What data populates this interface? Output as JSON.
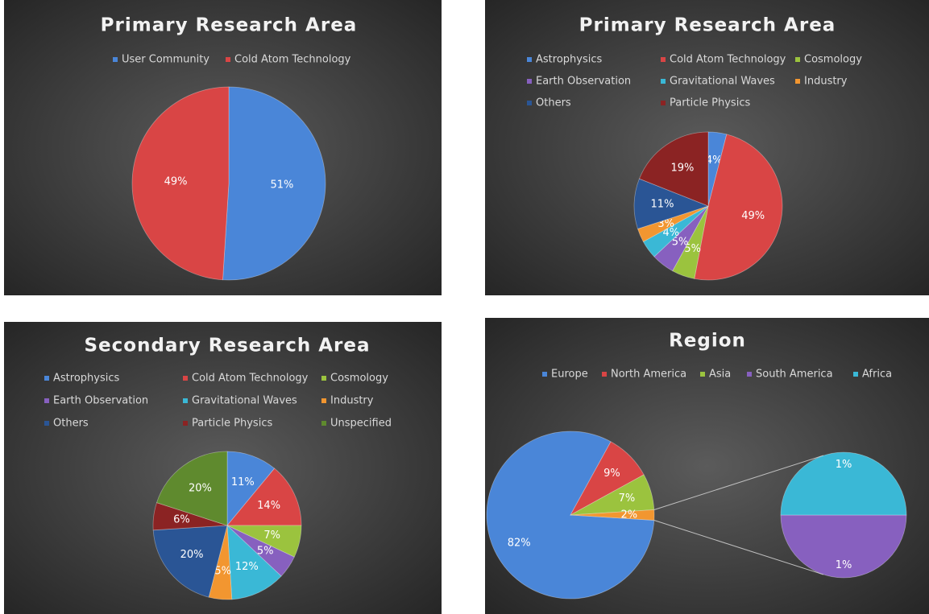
{
  "chart_data": [
    {
      "type": "pie",
      "title": "Primary Research Area",
      "categories": [
        "User Community",
        "Cold Atom Technology"
      ],
      "values": [
        51,
        49
      ],
      "value_labels": [
        "51%",
        "49%"
      ],
      "colors": [
        "#4a86d8",
        "#d94545"
      ]
    },
    {
      "type": "pie",
      "title": "Primary Research Area",
      "categories": [
        "Astrophysics",
        "Cold Atom Technology",
        "Cosmology",
        "Earth Observation",
        "Gravitational Waves",
        "Industry",
        "Others",
        "Particle Physics"
      ],
      "values": [
        4,
        49,
        5,
        5,
        4,
        3,
        11,
        19
      ],
      "value_labels": [
        "4%",
        "49%",
        "5%",
        "5%",
        "4%",
        "3%",
        "11%",
        "19%"
      ],
      "colors": [
        "#4a86d8",
        "#d94545",
        "#9bc33e",
        "#8760bf",
        "#3ab8d6",
        "#f29630",
        "#2a5595",
        "#8b2323"
      ]
    },
    {
      "type": "pie",
      "title": "Secondary Research Area",
      "categories": [
        "Astrophysics",
        "Cold Atom Technology",
        "Cosmology",
        "Earth Observation",
        "Gravitational Waves",
        "Industry",
        "Others",
        "Particle Physics",
        "Unspecified"
      ],
      "values": [
        11,
        14,
        7,
        5,
        12,
        5,
        20,
        6,
        20
      ],
      "value_labels": [
        "11%",
        "14%",
        "7%",
        "5%",
        "12%",
        "5%",
        "20%",
        "6%",
        "20%"
      ],
      "colors": [
        "#4a86d8",
        "#d94545",
        "#9bc33e",
        "#8760bf",
        "#3ab8d6",
        "#f29630",
        "#2a5595",
        "#8b2323",
        "#5f8a2e"
      ]
    },
    {
      "type": "pie_of_pie",
      "title": "Region",
      "categories": [
        "Europe",
        "North America",
        "Asia",
        "South America",
        "Africa"
      ],
      "values": [
        82,
        9,
        7,
        1,
        1
      ],
      "value_labels": [
        "82%",
        "9%",
        "7%",
        "1%",
        "1%"
      ],
      "colors": [
        "#4a86d8",
        "#d94545",
        "#9bc33e",
        "#8760bf",
        "#3ab8d6"
      ],
      "second_plot_count": 2,
      "other_value": 2,
      "other_label": "2%",
      "other_color": "#f29630"
    }
  ]
}
